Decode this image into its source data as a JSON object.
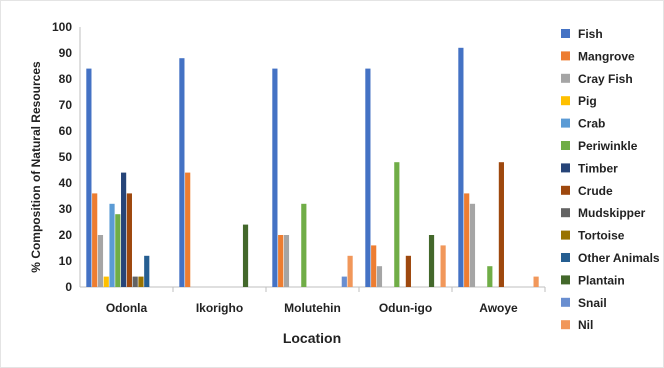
{
  "chart_data": {
    "type": "bar",
    "categories": [
      "Odonla",
      "Ikorigho",
      "Molutehin",
      "Odun-igo",
      "Awoye"
    ],
    "xlabel": "Location",
    "ylabel": "% Composition of Natural Resources",
    "ylim": [
      0,
      100
    ],
    "ytick_step": 10,
    "grid": false,
    "legend_position": "right",
    "series": [
      {
        "name": "Fish",
        "color": "#4472C4",
        "values": [
          84,
          88,
          84,
          84,
          92
        ]
      },
      {
        "name": "Mangrove",
        "color": "#ED7D31",
        "values": [
          36,
          44,
          20,
          16,
          36
        ]
      },
      {
        "name": "Cray Fish",
        "color": "#A5A5A5",
        "values": [
          20,
          0,
          20,
          8,
          32
        ]
      },
      {
        "name": "Pig",
        "color": "#FFC000",
        "values": [
          4,
          0,
          0,
          0,
          0
        ]
      },
      {
        "name": "Crab",
        "color": "#5B9BD5",
        "values": [
          32,
          0,
          0,
          0,
          0
        ]
      },
      {
        "name": "Periwinkle",
        "color": "#70AD47",
        "values": [
          28,
          0,
          32,
          48,
          8
        ]
      },
      {
        "name": "Timber",
        "color": "#264478",
        "values": [
          44,
          0,
          0,
          0,
          0
        ]
      },
      {
        "name": "Crude",
        "color": "#9E480E",
        "values": [
          36,
          0,
          0,
          12,
          48
        ]
      },
      {
        "name": "Mudskipper",
        "color": "#636363",
        "values": [
          4,
          0,
          0,
          0,
          0
        ]
      },
      {
        "name": "Tortoise",
        "color": "#997300",
        "values": [
          4,
          0,
          0,
          0,
          0
        ]
      },
      {
        "name": "Other Animals",
        "color": "#255E91",
        "values": [
          12,
          0,
          0,
          0,
          0
        ]
      },
      {
        "name": "Plantain",
        "color": "#43682B",
        "values": [
          0,
          24,
          0,
          20,
          0
        ]
      },
      {
        "name": "Snail",
        "color": "#698ED0",
        "values": [
          0,
          0,
          4,
          0,
          0
        ]
      },
      {
        "name": "Nil",
        "color": "#F1975A",
        "values": [
          0,
          0,
          12,
          16,
          4
        ]
      }
    ]
  }
}
